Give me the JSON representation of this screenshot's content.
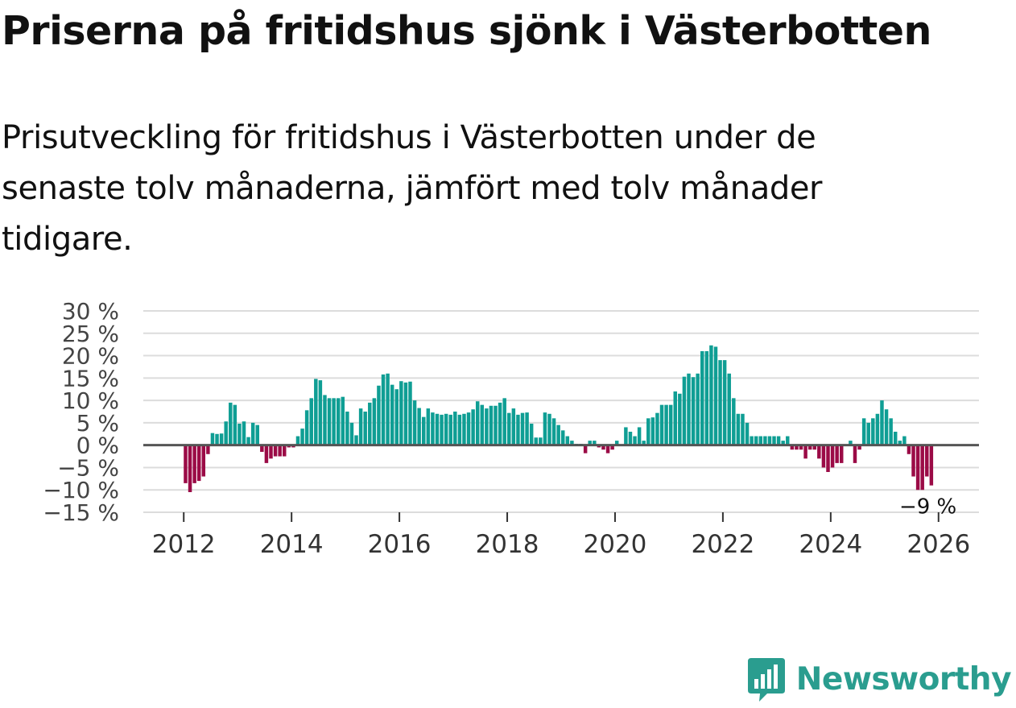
{
  "title": "Priserna på fritidshus sjönk i Västerbotten",
  "subtitle": "Prisutveckling för fritidshus i Västerbotten under de senaste tolv månaderna, jämfört med tolv månader tidigare.",
  "brand": {
    "name": "Newsworthy",
    "icon": "bar-chart-bubble-icon",
    "color": "#2a9d8f"
  },
  "colors": {
    "positive": "#0f9e94",
    "negative": "#9b0b46",
    "zero_line": "#555555",
    "grid": "#dcdcdc"
  },
  "chart_data": {
    "type": "bar",
    "title": "Prisutveckling för fritidshus i Västerbotten",
    "xlabel": "",
    "ylabel": "",
    "unit": "%",
    "ylim": [
      -15,
      30
    ],
    "xlim": [
      2011.25,
      2026.75
    ],
    "grid": true,
    "y_ticks": [
      {
        "value": 30,
        "label": "30 %"
      },
      {
        "value": 25,
        "label": "25 %"
      },
      {
        "value": 20,
        "label": "20 %"
      },
      {
        "value": 15,
        "label": "15 %"
      },
      {
        "value": 10,
        "label": "10 %"
      },
      {
        "value": 5,
        "label": "5 %"
      },
      {
        "value": 0,
        "label": "0 %"
      },
      {
        "value": -5,
        "label": "−5 %"
      },
      {
        "value": -10,
        "label": "−10 %"
      },
      {
        "value": -15,
        "label": "−15 %"
      }
    ],
    "x_ticks": [
      {
        "value": 2012,
        "label": "2012"
      },
      {
        "value": 2014,
        "label": "2014"
      },
      {
        "value": 2016,
        "label": "2016"
      },
      {
        "value": 2018,
        "label": "2018"
      },
      {
        "value": 2020,
        "label": "2020"
      },
      {
        "value": 2022,
        "label": "2022"
      },
      {
        "value": 2024,
        "label": "2024"
      },
      {
        "value": 2026,
        "label": "2026"
      }
    ],
    "series_start": "2012-01",
    "frequency": "monthly",
    "values": [
      -8.5,
      -10.5,
      -8.5,
      -8,
      -7,
      -2,
      2.7,
      2.5,
      2.6,
      5.3,
      9.5,
      9,
      4.8,
      5.3,
      1.8,
      5,
      4.5,
      -1.5,
      -4,
      -3,
      -2.5,
      -2.5,
      -2.5,
      -0.5,
      -0.5,
      2,
      3.7,
      7.8,
      10.5,
      14.8,
      14.5,
      11.2,
      10.5,
      10.5,
      10.5,
      10.8,
      7.5,
      5,
      2.2,
      8.2,
      7.5,
      9.5,
      10.5,
      13.3,
      15.8,
      16,
      13.5,
      12.5,
      14.3,
      14,
      14.2,
      10,
      8.3,
      6.3,
      8.2,
      7.3,
      7,
      6.8,
      7,
      6.8,
      7.5,
      6.8,
      7,
      7.3,
      8,
      9.8,
      9,
      8.2,
      8.8,
      8.8,
      9.5,
      10.5,
      7.2,
      8.2,
      6.8,
      7.2,
      7.3,
      4.8,
      1.7,
      1.7,
      7.3,
      7,
      6,
      4.5,
      3.3,
      2,
      1,
      0.3,
      0.3,
      -1.8,
      1,
      1,
      -0.5,
      -1,
      -1.8,
      -1,
      1,
      0,
      4,
      3,
      2,
      4,
      1,
      6,
      6.2,
      7.2,
      9,
      9,
      9,
      12,
      11.5,
      15.3,
      16,
      15.2,
      16,
      21,
      21,
      22.3,
      22,
      19,
      19,
      16,
      10.5,
      7,
      7,
      5,
      2,
      2,
      2,
      2,
      2,
      2,
      2,
      1,
      2,
      -1,
      -1,
      -1,
      -3,
      -1,
      -1,
      -3,
      -5,
      -6,
      -5,
      -4,
      -4,
      0,
      1,
      -4,
      -1,
      6,
      5,
      6,
      7,
      10,
      8,
      6,
      3,
      1,
      2,
      -2,
      -7,
      -10,
      -10,
      -7,
      -9
    ],
    "end_label": "−9 %",
    "last_value": -9
  }
}
